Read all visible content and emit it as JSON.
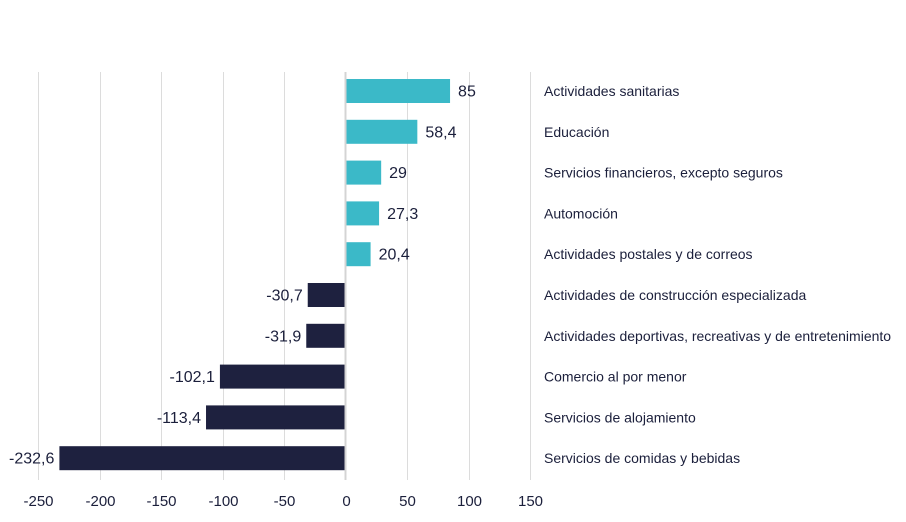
{
  "chart_data": {
    "type": "bar",
    "orientation": "horizontal",
    "title": "",
    "xlabel": "",
    "ylabel": "",
    "xlim": [
      -250,
      150
    ],
    "x_ticks": [
      -250,
      -200,
      -150,
      -100,
      -50,
      0,
      50,
      100,
      150
    ],
    "x_tick_labels": [
      "-250",
      "-200",
      "-150",
      "-100",
      "-50",
      "0",
      "50",
      "100",
      "150"
    ],
    "grid": true,
    "categories": [
      "Actividades sanitarias",
      "Educación",
      "Servicios financieros, excepto seguros",
      "Automoción",
      "Actividades postales y de correos",
      "Actividades de construcción especializada",
      "Actividades deportivas, recreativas y de entretenimiento",
      "Comercio al por menor",
      "Servicios de alojamiento",
      "Servicios de comidas y bebidas"
    ],
    "values": [
      85,
      58.4,
      29,
      27.3,
      20.4,
      -30.7,
      -31.9,
      -102.1,
      -113.4,
      -232.6
    ],
    "value_labels": [
      "85",
      "58,4",
      "29",
      "27,3",
      "20,4",
      "-30,7",
      "-31,9",
      "-102,1",
      "-113,4",
      "-232,6"
    ],
    "colors": {
      "positive": "#3bb9c8",
      "negative": "#1e213f",
      "grid": "#dcdcdc",
      "text": "#1b1f3b"
    },
    "category_label_placement": "right"
  }
}
